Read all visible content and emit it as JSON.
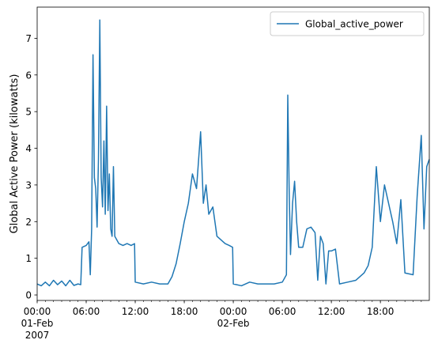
{
  "chart_data": {
    "type": "line",
    "title": "",
    "xlabel": "",
    "ylabel": "Global Active Power (kilowatts)",
    "xlim": [
      "2007-02-01 00:00",
      "2007-02-02 23:59"
    ],
    "ylim": [
      -0.15,
      7.85
    ],
    "yticks": [
      0,
      1,
      2,
      3,
      4,
      5,
      6,
      7
    ],
    "xticks": [
      {
        "time": "2007-02-01 00:00",
        "label_lines": [
          "00:00",
          "01-Feb",
          "2007"
        ]
      },
      {
        "time": "2007-02-01 06:00",
        "label_lines": [
          "06:00"
        ]
      },
      {
        "time": "2007-02-01 12:00",
        "label_lines": [
          "12:00"
        ]
      },
      {
        "time": "2007-02-01 18:00",
        "label_lines": [
          "18:00"
        ]
      },
      {
        "time": "2007-02-02 00:00",
        "label_lines": [
          "00:00",
          "02-Feb"
        ]
      },
      {
        "time": "2007-02-02 06:00",
        "label_lines": [
          "06:00"
        ]
      },
      {
        "time": "2007-02-02 12:00",
        "label_lines": [
          "12:00"
        ]
      },
      {
        "time": "2007-02-02 18:00",
        "label_lines": [
          "18:00"
        ]
      }
    ],
    "legend": {
      "placement": "top-right"
    },
    "grid": false,
    "series": [
      {
        "name": "Global_active_power",
        "color": "#1f77b4",
        "points": [
          [
            "2007-02-01 00:00",
            0.3
          ],
          [
            "2007-02-01 00:30",
            0.25
          ],
          [
            "2007-02-01 01:00",
            0.35
          ],
          [
            "2007-02-01 01:30",
            0.25
          ],
          [
            "2007-02-01 02:00",
            0.4
          ],
          [
            "2007-02-01 02:30",
            0.28
          ],
          [
            "2007-02-01 03:00",
            0.38
          ],
          [
            "2007-02-01 03:30",
            0.25
          ],
          [
            "2007-02-01 04:00",
            0.4
          ],
          [
            "2007-02-01 04:30",
            0.26
          ],
          [
            "2007-02-01 05:00",
            0.3
          ],
          [
            "2007-02-01 05:20",
            0.28
          ],
          [
            "2007-02-01 05:30",
            1.3
          ],
          [
            "2007-02-01 06:00",
            1.35
          ],
          [
            "2007-02-01 06:20",
            1.45
          ],
          [
            "2007-02-01 06:30",
            0.55
          ],
          [
            "2007-02-01 06:40",
            1.8
          ],
          [
            "2007-02-01 06:50",
            6.55
          ],
          [
            "2007-02-01 07:00",
            3.2
          ],
          [
            "2007-02-01 07:10",
            2.9
          ],
          [
            "2007-02-01 07:20",
            1.85
          ],
          [
            "2007-02-01 07:30",
            3.7
          ],
          [
            "2007-02-01 07:40",
            7.5
          ],
          [
            "2007-02-01 07:50",
            3.2
          ],
          [
            "2007-02-01 08:00",
            2.4
          ],
          [
            "2007-02-01 08:10",
            4.2
          ],
          [
            "2007-02-01 08:20",
            2.2
          ],
          [
            "2007-02-01 08:30",
            5.15
          ],
          [
            "2007-02-01 08:40",
            2.3
          ],
          [
            "2007-02-01 08:50",
            3.3
          ],
          [
            "2007-02-01 09:00",
            1.8
          ],
          [
            "2007-02-01 09:10",
            1.6
          ],
          [
            "2007-02-01 09:20",
            3.5
          ],
          [
            "2007-02-01 09:30",
            1.6
          ],
          [
            "2007-02-01 10:00",
            1.4
          ],
          [
            "2007-02-01 10:30",
            1.35
          ],
          [
            "2007-02-01 11:00",
            1.4
          ],
          [
            "2007-02-01 11:30",
            1.35
          ],
          [
            "2007-02-01 11:55",
            1.4
          ],
          [
            "2007-02-01 12:00",
            0.35
          ],
          [
            "2007-02-01 13:00",
            0.3
          ],
          [
            "2007-02-01 14:00",
            0.35
          ],
          [
            "2007-02-01 15:00",
            0.3
          ],
          [
            "2007-02-01 16:00",
            0.3
          ],
          [
            "2007-02-01 16:30",
            0.5
          ],
          [
            "2007-02-01 17:00",
            0.85
          ],
          [
            "2007-02-01 17:30",
            1.4
          ],
          [
            "2007-02-01 18:00",
            2.0
          ],
          [
            "2007-02-01 18:30",
            2.5
          ],
          [
            "2007-02-01 19:00",
            3.3
          ],
          [
            "2007-02-01 19:30",
            2.9
          ],
          [
            "2007-02-01 20:00",
            4.45
          ],
          [
            "2007-02-01 20:20",
            2.5
          ],
          [
            "2007-02-01 20:40",
            3.0
          ],
          [
            "2007-02-01 21:00",
            2.2
          ],
          [
            "2007-02-01 21:30",
            2.4
          ],
          [
            "2007-02-01 22:00",
            1.6
          ],
          [
            "2007-02-01 22:30",
            1.5
          ],
          [
            "2007-02-01 23:00",
            1.4
          ],
          [
            "2007-02-01 23:30",
            1.35
          ],
          [
            "2007-02-01 23:55",
            1.3
          ],
          [
            "2007-02-02 00:00",
            0.3
          ],
          [
            "2007-02-02 01:00",
            0.25
          ],
          [
            "2007-02-02 02:00",
            0.35
          ],
          [
            "2007-02-02 03:00",
            0.3
          ],
          [
            "2007-02-02 04:00",
            0.3
          ],
          [
            "2007-02-02 05:00",
            0.3
          ],
          [
            "2007-02-02 06:00",
            0.35
          ],
          [
            "2007-02-02 06:30",
            0.55
          ],
          [
            "2007-02-02 06:40",
            5.45
          ],
          [
            "2007-02-02 06:50",
            2.9
          ],
          [
            "2007-02-02 07:00",
            1.1
          ],
          [
            "2007-02-02 07:15",
            2.5
          ],
          [
            "2007-02-02 07:30",
            3.1
          ],
          [
            "2007-02-02 07:45",
            2.0
          ],
          [
            "2007-02-02 08:00",
            1.3
          ],
          [
            "2007-02-02 08:30",
            1.3
          ],
          [
            "2007-02-02 09:00",
            1.8
          ],
          [
            "2007-02-02 09:30",
            1.85
          ],
          [
            "2007-02-02 10:00",
            1.7
          ],
          [
            "2007-02-02 10:20",
            0.4
          ],
          [
            "2007-02-02 10:40",
            1.6
          ],
          [
            "2007-02-02 11:00",
            1.4
          ],
          [
            "2007-02-02 11:20",
            0.3
          ],
          [
            "2007-02-02 11:40",
            1.2
          ],
          [
            "2007-02-02 12:00",
            1.2
          ],
          [
            "2007-02-02 12:30",
            1.25
          ],
          [
            "2007-02-02 13:00",
            0.3
          ],
          [
            "2007-02-02 14:00",
            0.35
          ],
          [
            "2007-02-02 15:00",
            0.4
          ],
          [
            "2007-02-02 16:00",
            0.6
          ],
          [
            "2007-02-02 16:30",
            0.8
          ],
          [
            "2007-02-02 17:00",
            1.3
          ],
          [
            "2007-02-02 17:30",
            3.5
          ],
          [
            "2007-02-02 18:00",
            2.0
          ],
          [
            "2007-02-02 18:30",
            3.0
          ],
          [
            "2007-02-02 19:00",
            2.5
          ],
          [
            "2007-02-02 19:30",
            2.0
          ],
          [
            "2007-02-02 20:00",
            1.4
          ],
          [
            "2007-02-02 20:30",
            2.6
          ],
          [
            "2007-02-02 21:00",
            0.6
          ],
          [
            "2007-02-02 22:00",
            0.55
          ],
          [
            "2007-02-02 22:30",
            2.7
          ],
          [
            "2007-02-02 23:00",
            4.35
          ],
          [
            "2007-02-02 23:20",
            1.8
          ],
          [
            "2007-02-02 23:40",
            3.5
          ],
          [
            "2007-02-02 23:59",
            3.7
          ]
        ]
      }
    ]
  }
}
